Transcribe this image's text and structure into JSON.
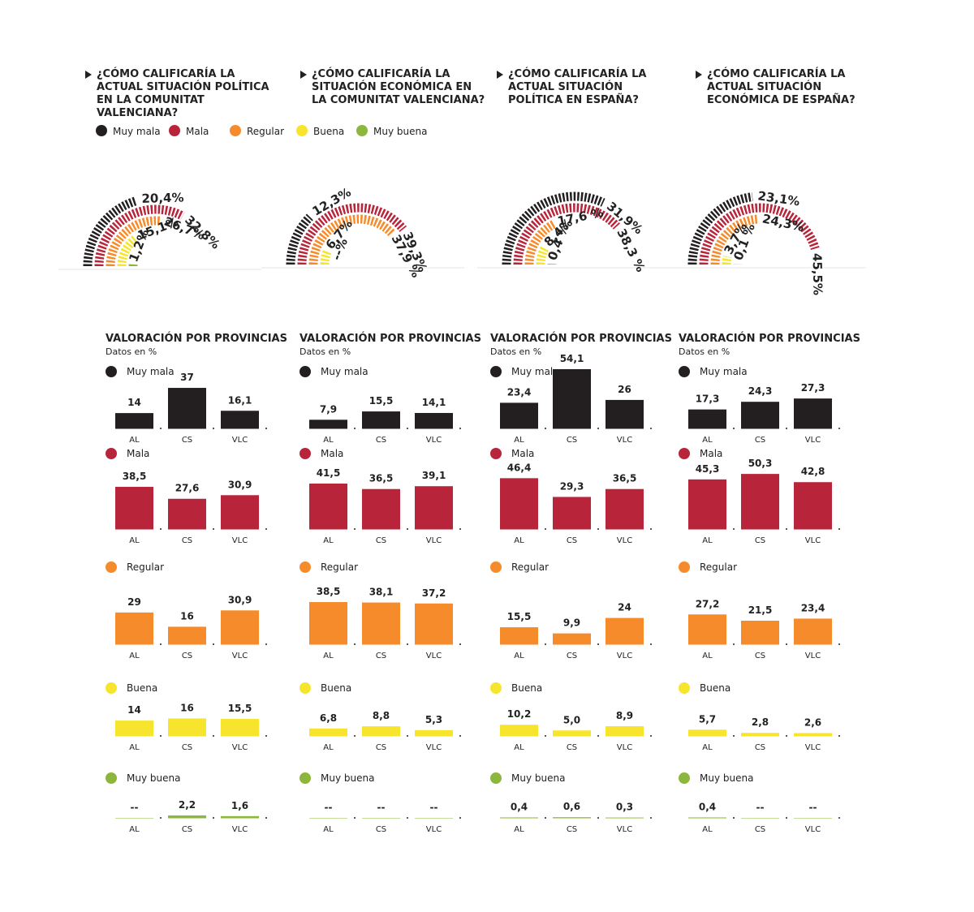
{
  "legend": {
    "items": [
      {
        "name": "Muy mala",
        "color": "#231f20"
      },
      {
        "name": "Mala",
        "color": "#b8253b"
      },
      {
        "name": "Regular",
        "color": "#f68b2b"
      },
      {
        "name": "Buena",
        "color": "#f6e52c"
      },
      {
        "name": "Muy buena",
        "color": "#8db63c"
      }
    ]
  },
  "chart_data": [
    {
      "type": "radial",
      "title": "¿CÓMO CALIFICARÍA LA ACTUAL SITUACIÓN POLÍTICA EN LA COMUNITAT VALENCIANA?",
      "values": [
        20.4,
        32.8,
        26.7,
        15.1,
        1.2
      ],
      "value_labels": [
        "20,4%",
        "32,8%",
        "26,7%",
        "15,1%",
        "1,2%"
      ],
      "provinces": {
        "title": "VALORACIÓN POR PROVINCIAS",
        "subtitle": "Datos en %",
        "categories": [
          "AL",
          "CS",
          "VLC"
        ],
        "series": [
          {
            "name": "Muy mala",
            "values": [
              14,
              37,
              16.1
            ],
            "value_labels": [
              "14",
              "37",
              "16,1"
            ]
          },
          {
            "name": "Mala",
            "values": [
              38.5,
              27.6,
              30.9
            ],
            "value_labels": [
              "38,5",
              "27,6",
              "30,9"
            ]
          },
          {
            "name": "Regular",
            "values": [
              29,
              16,
              30.9
            ],
            "value_labels": [
              "29",
              "16",
              "30,9"
            ]
          },
          {
            "name": "Buena",
            "values": [
              14,
              16,
              15.5
            ],
            "value_labels": [
              "14",
              "16",
              "15,5"
            ]
          },
          {
            "name": "Muy buena",
            "values": [
              null,
              2.2,
              1.6
            ],
            "value_labels": [
              "--",
              "2,2",
              "1,6"
            ]
          }
        ]
      }
    },
    {
      "type": "radial",
      "title": "¿CÓMO CALIFICARÍA LA SITUACIÓN ECONÓMICA EN LA COMUNITAT VALENCIANA?",
      "values": [
        12.3,
        39.3,
        37.9,
        6.7,
        null
      ],
      "value_labels": [
        "12,3%",
        "39,3%",
        "37,9 %",
        "6,7%",
        "--%"
      ],
      "provinces": {
        "title": "VALORACIÓN POR PROVINCIAS",
        "subtitle": "Datos en %",
        "categories": [
          "AL",
          "CS",
          "VLC"
        ],
        "series": [
          {
            "name": "Muy mala",
            "values": [
              7.9,
              15.5,
              14.1
            ],
            "value_labels": [
              "7,9",
              "15,5",
              "14,1"
            ]
          },
          {
            "name": "Mala",
            "values": [
              41.5,
              36.5,
              39.1
            ],
            "value_labels": [
              "41,5",
              "36,5",
              "39,1"
            ]
          },
          {
            "name": "Regular",
            "values": [
              38.5,
              38.1,
              37.2
            ],
            "value_labels": [
              "38,5",
              "38,1",
              "37,2"
            ]
          },
          {
            "name": "Buena",
            "values": [
              6.8,
              8.8,
              5.3
            ],
            "value_labels": [
              "6,8",
              "8,8",
              "5,3"
            ]
          },
          {
            "name": "Muy buena",
            "values": [
              null,
              null,
              null
            ],
            "value_labels": [
              "--",
              "--",
              "--"
            ]
          }
        ]
      }
    },
    {
      "type": "radial",
      "title": "¿CÓMO CALIFICARÍA LA ACTUAL SITUACIÓN POLÍTICA EN ESPAÑA?",
      "values": [
        31.9,
        38.3,
        17.6,
        8.4,
        0.4
      ],
      "value_labels": [
        "31,9%",
        "38,3 %",
        "17,6 %",
        "8,4%",
        "0,4 %"
      ],
      "provinces": {
        "title": "VALORACIÓN POR PROVINCIAS",
        "subtitle": "Datos en %",
        "categories": [
          "AL",
          "CS",
          "VLC"
        ],
        "series": [
          {
            "name": "Muy mala",
            "values": [
              23.4,
              54.1,
              26
            ],
            "value_labels": [
              "23,4",
              "54,1",
              "26"
            ]
          },
          {
            "name": "Mala",
            "values": [
              46.4,
              29.3,
              36.5
            ],
            "value_labels": [
              "46,4",
              "29,3",
              "36,5"
            ]
          },
          {
            "name": "Regular",
            "values": [
              15.5,
              9.9,
              24
            ],
            "value_labels": [
              "15,5",
              "9,9",
              "24"
            ]
          },
          {
            "name": "Buena",
            "values": [
              10.2,
              5.0,
              8.9
            ],
            "value_labels": [
              "10,2",
              "5,0",
              "8,9"
            ]
          },
          {
            "name": "Muy buena",
            "values": [
              0.4,
              0.6,
              0.3
            ],
            "value_labels": [
              "0,4",
              "0,6",
              "0,3"
            ]
          }
        ]
      }
    },
    {
      "type": "radial",
      "title": "¿CÓMO CALIFICARÍA LA ACTUAL SITUACIÓN ECONÓMICA DE ESPAÑA?",
      "values": [
        23.1,
        45.5,
        24.3,
        3.7,
        0.1
      ],
      "value_labels": [
        "23,1%",
        "45,5%",
        "24,3%",
        "3,7%",
        "0,1 %"
      ],
      "provinces": {
        "title": "VALORACIÓN POR PROVINCIAS",
        "subtitle": "Datos en %",
        "categories": [
          "AL",
          "CS",
          "VLC"
        ],
        "series": [
          {
            "name": "Muy mala",
            "values": [
              17.3,
              24.3,
              27.3
            ],
            "value_labels": [
              "17,3",
              "24,3",
              "27,3"
            ]
          },
          {
            "name": "Mala",
            "values": [
              45.3,
              50.3,
              42.8
            ],
            "value_labels": [
              "45,3",
              "50,3",
              "42,8"
            ]
          },
          {
            "name": "Regular",
            "values": [
              27.2,
              21.5,
              23.4
            ],
            "value_labels": [
              "27,2",
              "21,5",
              "23,4"
            ]
          },
          {
            "name": "Buena",
            "values": [
              5.7,
              2.8,
              2.6
            ],
            "value_labels": [
              "5,7",
              "2,8",
              "2,6"
            ]
          },
          {
            "name": "Muy buena",
            "values": [
              0.4,
              null,
              null
            ],
            "value_labels": [
              "0,4",
              "--",
              "--"
            ]
          }
        ]
      }
    }
  ]
}
